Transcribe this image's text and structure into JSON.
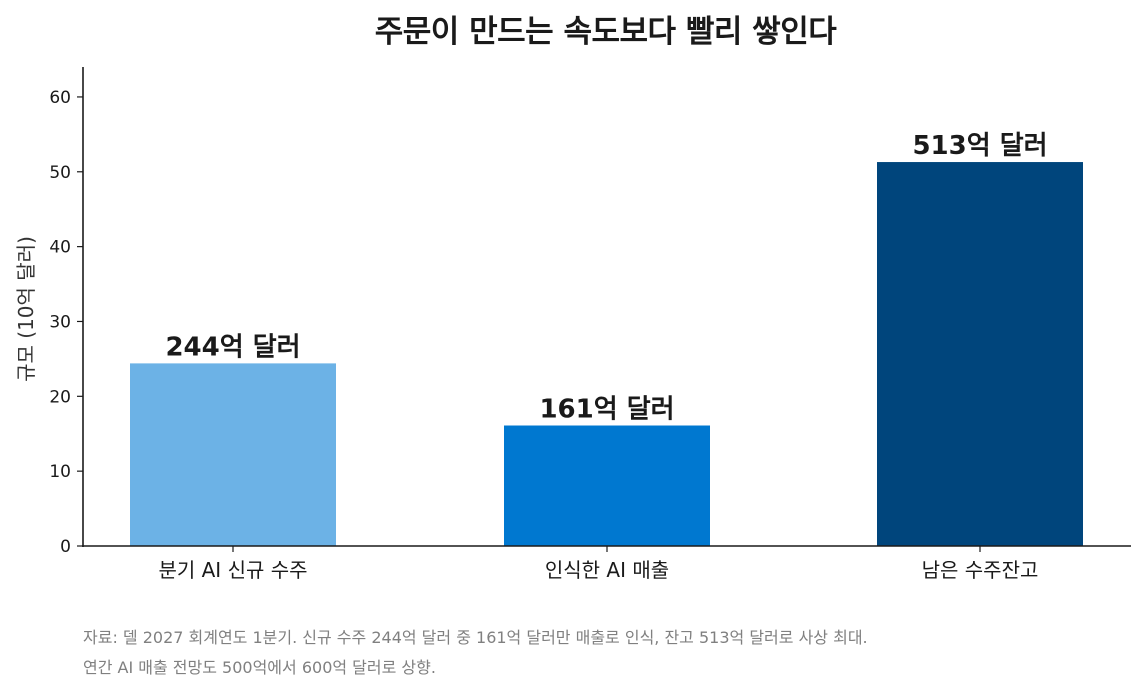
{
  "chart_data": {
    "type": "bar",
    "title": "주문이 만드는 속도보다 빨리 쌓인다",
    "ylabel": "규모 (10억 달러)",
    "xlabel": "",
    "categories": [
      "분기 AI 신규 수주",
      "인식한 AI 매출",
      "남은 수주잔고"
    ],
    "values": [
      24.4,
      16.1,
      51.3
    ],
    "data_labels": [
      "244억 달러",
      "161억 달러",
      "513억 달러"
    ],
    "colors": [
      "#6cb2e6",
      "#0078d0",
      "#00457c"
    ],
    "ylim": [
      0,
      64
    ],
    "yticks": [
      0,
      10,
      20,
      30,
      40,
      50,
      60
    ],
    "grid": false,
    "legend": "none"
  },
  "source": {
    "line1": "자료: 델 2027 회계연도 1분기. 신규 수주 244억 달러 중 161억 달러만 매출로 인식, 잔고 513억 달러로 사상 최대.",
    "line2": "연간 AI 매출 전망도 500억에서 600억 달러로 상향."
  }
}
